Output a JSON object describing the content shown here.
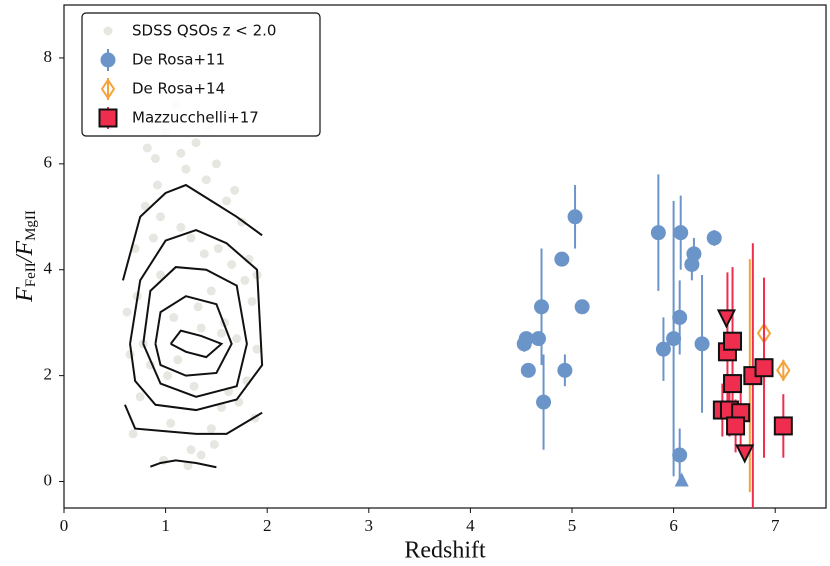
{
  "chart_data": {
    "type": "scatter",
    "x_label": "Redshift",
    "y_label": [
      "F",
      "FeII",
      "/F",
      "MgII"
    ],
    "xlim": [
      0,
      7.5
    ],
    "ylim": [
      -0.5,
      9
    ],
    "xticks": [
      0,
      1,
      2,
      3,
      4,
      5,
      6,
      7
    ],
    "yticks": [
      0,
      2,
      4,
      6,
      8
    ],
    "legend": "upper left",
    "series": [
      {
        "name": "SDSS QSOs z < 2.0",
        "color": "#c9c9bd",
        "marker": "dot",
        "x": [
          0.62,
          0.7,
          0.75,
          0.8,
          0.85,
          0.9,
          0.95,
          1.0,
          1.05,
          1.1,
          1.15,
          1.2,
          1.25,
          1.3,
          1.35,
          1.4,
          1.45,
          1.5,
          1.55,
          1.6,
          1.65,
          1.7,
          1.75,
          1.8,
          1.85,
          1.9,
          0.68,
          0.78,
          0.88,
          0.98,
          1.08,
          1.18,
          1.28,
          1.38,
          1.48,
          1.58,
          1.68,
          1.78,
          1.88,
          0.72,
          0.92,
          1.12,
          1.32,
          1.52,
          1.72,
          0.82,
          1.02,
          1.22,
          1.42,
          1.62,
          1.82,
          1.15,
          1.35,
          0.95,
          1.55,
          0.65,
          1.9,
          1.25,
          1.05,
          1.45
        ],
        "values": [
          3.2,
          4.4,
          1.6,
          5.2,
          2.2,
          6.1,
          3.9,
          6.6,
          1.1,
          7.1,
          4.8,
          5.9,
          0.6,
          6.4,
          2.9,
          5.7,
          3.6,
          6.0,
          1.4,
          5.3,
          4.1,
          2.7,
          4.9,
          1.9,
          3.4,
          2.5,
          0.9,
          2.6,
          4.6,
          0.4,
          3.1,
          6.9,
          1.8,
          4.3,
          0.7,
          3.0,
          5.5,
          3.8,
          1.2,
          3.5,
          5.6,
          2.3,
          3.3,
          4.4,
          1.5,
          6.3,
          2.0,
          0.3,
          6.7,
          1.7,
          4.2,
          6.2,
          0.5,
          5.0,
          2.8,
          2.4,
          3.9,
          4.6,
          6.8,
          1.0
        ]
      },
      {
        "name": "De Rosa+11",
        "color": "#6b94c9",
        "marker": "circle",
        "x": [
          4.53,
          4.55,
          4.57,
          4.67,
          4.7,
          4.72,
          4.9,
          4.93,
          5.03,
          5.1,
          5.85,
          5.9,
          6.0,
          6.06,
          6.06,
          6.07,
          6.18,
          6.2,
          6.28,
          6.4
        ],
        "values": [
          2.6,
          2.7,
          2.1,
          2.7,
          3.3,
          1.5,
          4.2,
          2.1,
          5.0,
          3.3,
          4.7,
          2.5,
          2.7,
          0.5,
          3.1,
          4.7,
          4.1,
          4.3,
          2.6,
          4.6
        ],
        "errors": [
          0.15,
          0.1,
          0.1,
          0.1,
          1.1,
          0.9,
          0.1,
          0.3,
          0.6,
          0.1,
          1.1,
          0.6,
          2.6,
          0.5,
          0.7,
          0.7,
          0.3,
          0.3,
          1.3,
          0.15
        ],
        "lower_limits": {
          "x": [
            6.08
          ],
          "values": [
            0
          ]
        }
      },
      {
        "name": "De Rosa+14",
        "color": "#f5a23b",
        "marker": "diamond",
        "x": [
          6.75,
          6.89,
          7.08
        ],
        "values": [
          2.0,
          2.8,
          2.1
        ],
        "errors": [
          2.2,
          0.4,
          0.2
        ]
      },
      {
        "name": "Mazzucchelli+17",
        "color": "#ef2d4e",
        "marker": "square",
        "x": [
          6.53,
          6.58,
          6.58,
          6.48,
          6.55,
          6.66,
          6.61,
          6.78,
          6.89,
          7.08
        ],
        "values": [
          2.45,
          2.65,
          1.85,
          1.35,
          1.35,
          1.3,
          1.05,
          2.0,
          2.15,
          1.05
        ],
        "errors": [
          1.5,
          1.4,
          0.8,
          0.5,
          0.5,
          0.6,
          0.5,
          2.5,
          1.7,
          0.6
        ],
        "upper_limits": {
          "x": [
            6.52,
            6.7
          ],
          "values": [
            3.1,
            0.55
          ]
        }
      }
    ],
    "contours": [
      {
        "x": [
          0.58,
          0.75,
          1.0,
          1.2,
          1.45,
          1.7,
          1.95
        ],
        "values": [
          3.8,
          5.0,
          5.45,
          5.6,
          5.3,
          5.0,
          4.65
        ]
      },
      {
        "x": [
          0.6,
          0.7,
          1.0,
          1.3,
          1.6,
          1.95
        ],
        "values": [
          1.45,
          1.0,
          0.95,
          0.9,
          0.9,
          1.3
        ]
      },
      {
        "x": [
          0.65,
          0.75,
          1.0,
          1.3,
          1.6,
          1.9,
          1.95,
          1.7,
          1.3,
          0.9,
          0.7,
          0.65
        ],
        "values": [
          2.6,
          3.8,
          4.55,
          4.75,
          4.5,
          4.0,
          2.2,
          1.55,
          1.35,
          1.45,
          1.9,
          2.6
        ]
      },
      {
        "x": [
          0.78,
          0.85,
          1.1,
          1.4,
          1.7,
          1.8,
          1.7,
          1.3,
          0.95,
          0.78
        ],
        "values": [
          2.6,
          3.6,
          4.05,
          4.0,
          3.7,
          2.6,
          1.8,
          1.6,
          1.85,
          2.6
        ]
      },
      {
        "x": [
          0.9,
          0.95,
          1.2,
          1.5,
          1.65,
          1.5,
          1.2,
          0.95,
          0.9
        ],
        "values": [
          2.6,
          3.2,
          3.5,
          3.35,
          2.6,
          2.05,
          2.0,
          2.2,
          2.6
        ]
      },
      {
        "x": [
          1.05,
          1.15,
          1.35,
          1.55,
          1.4,
          1.2,
          1.05
        ],
        "values": [
          2.6,
          2.85,
          2.75,
          2.6,
          2.35,
          2.45,
          2.6
        ]
      },
      {
        "x": [
          0.85,
          0.95,
          1.1,
          1.3,
          1.5
        ],
        "values": [
          0.28,
          0.35,
          0.4,
          0.35,
          0.27
        ]
      }
    ]
  }
}
